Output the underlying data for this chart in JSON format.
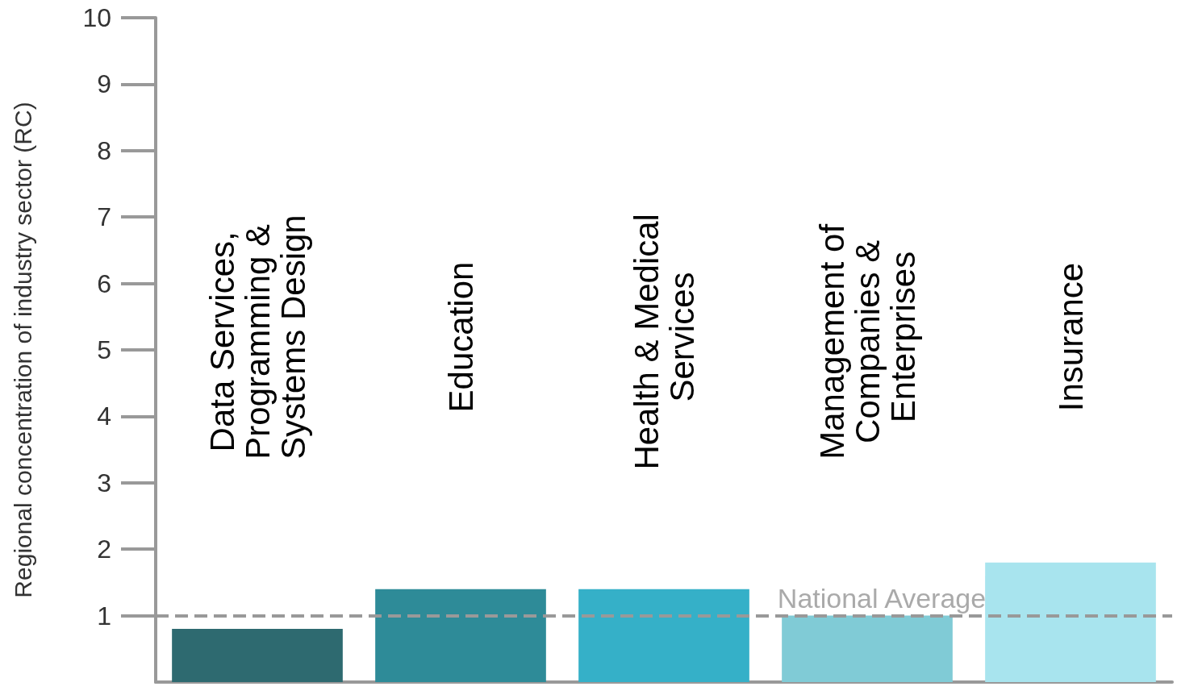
{
  "chart_data": {
    "type": "bar",
    "ylabel": "Regional concentration of industry sector (RC)",
    "categories": [
      "Data Services, Programming & Systems Design",
      "Education",
      "Health & Medical Services",
      "Management of Companies & Enterprises",
      "Insurance"
    ],
    "values": [
      0.8,
      1.4,
      1.4,
      1.0,
      1.8
    ],
    "colors": [
      "#2e6a70",
      "#2e8b98",
      "#35b0c8",
      "#80cbd6",
      "#a8e4ee"
    ],
    "ylim": [
      0,
      10
    ],
    "yticks": [
      1,
      2,
      3,
      4,
      5,
      6,
      7,
      8,
      9,
      10
    ],
    "grid": false,
    "ref_lines": [
      {
        "axis": "y",
        "value": 1,
        "label": "National Average",
        "color": "#999999",
        "line_style": "dashed"
      }
    ]
  }
}
